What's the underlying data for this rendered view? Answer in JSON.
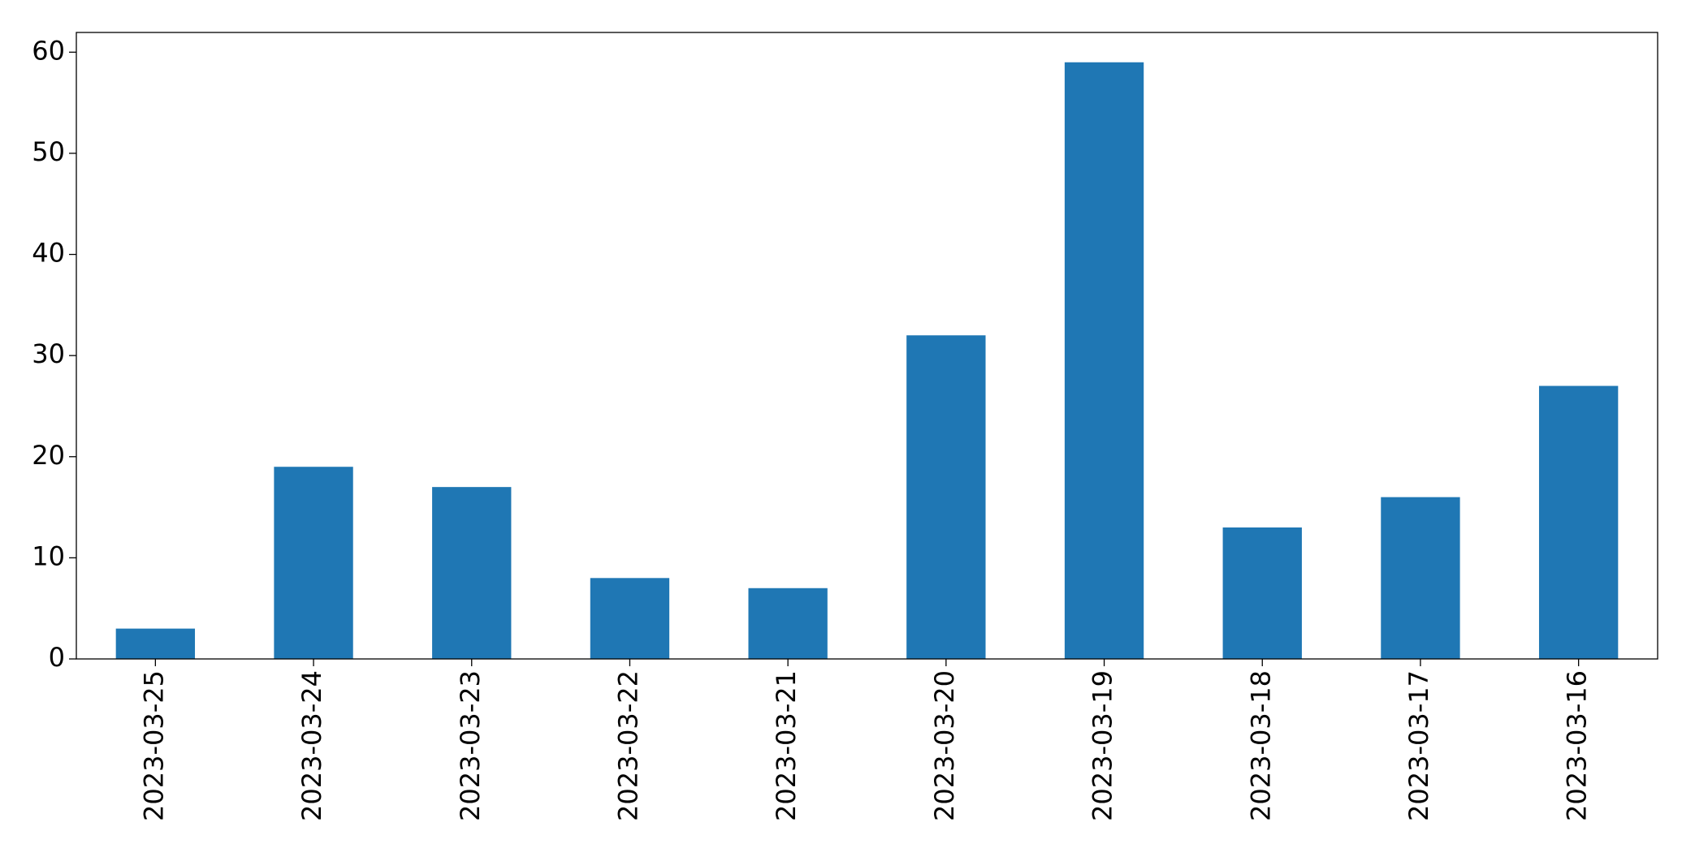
{
  "chart_data": {
    "type": "bar",
    "categories": [
      "2023-03-25",
      "2023-03-24",
      "2023-03-23",
      "2023-03-22",
      "2023-03-21",
      "2023-03-20",
      "2023-03-19",
      "2023-03-18",
      "2023-03-17",
      "2023-03-16"
    ],
    "values": [
      3,
      19,
      17,
      8,
      7,
      32,
      59,
      13,
      16,
      27
    ],
    "color": "#1f77b4",
    "ylim": [
      0,
      61.95
    ],
    "yticks": [
      0,
      10,
      20,
      30,
      40,
      50,
      60
    ],
    "grid": false
  }
}
